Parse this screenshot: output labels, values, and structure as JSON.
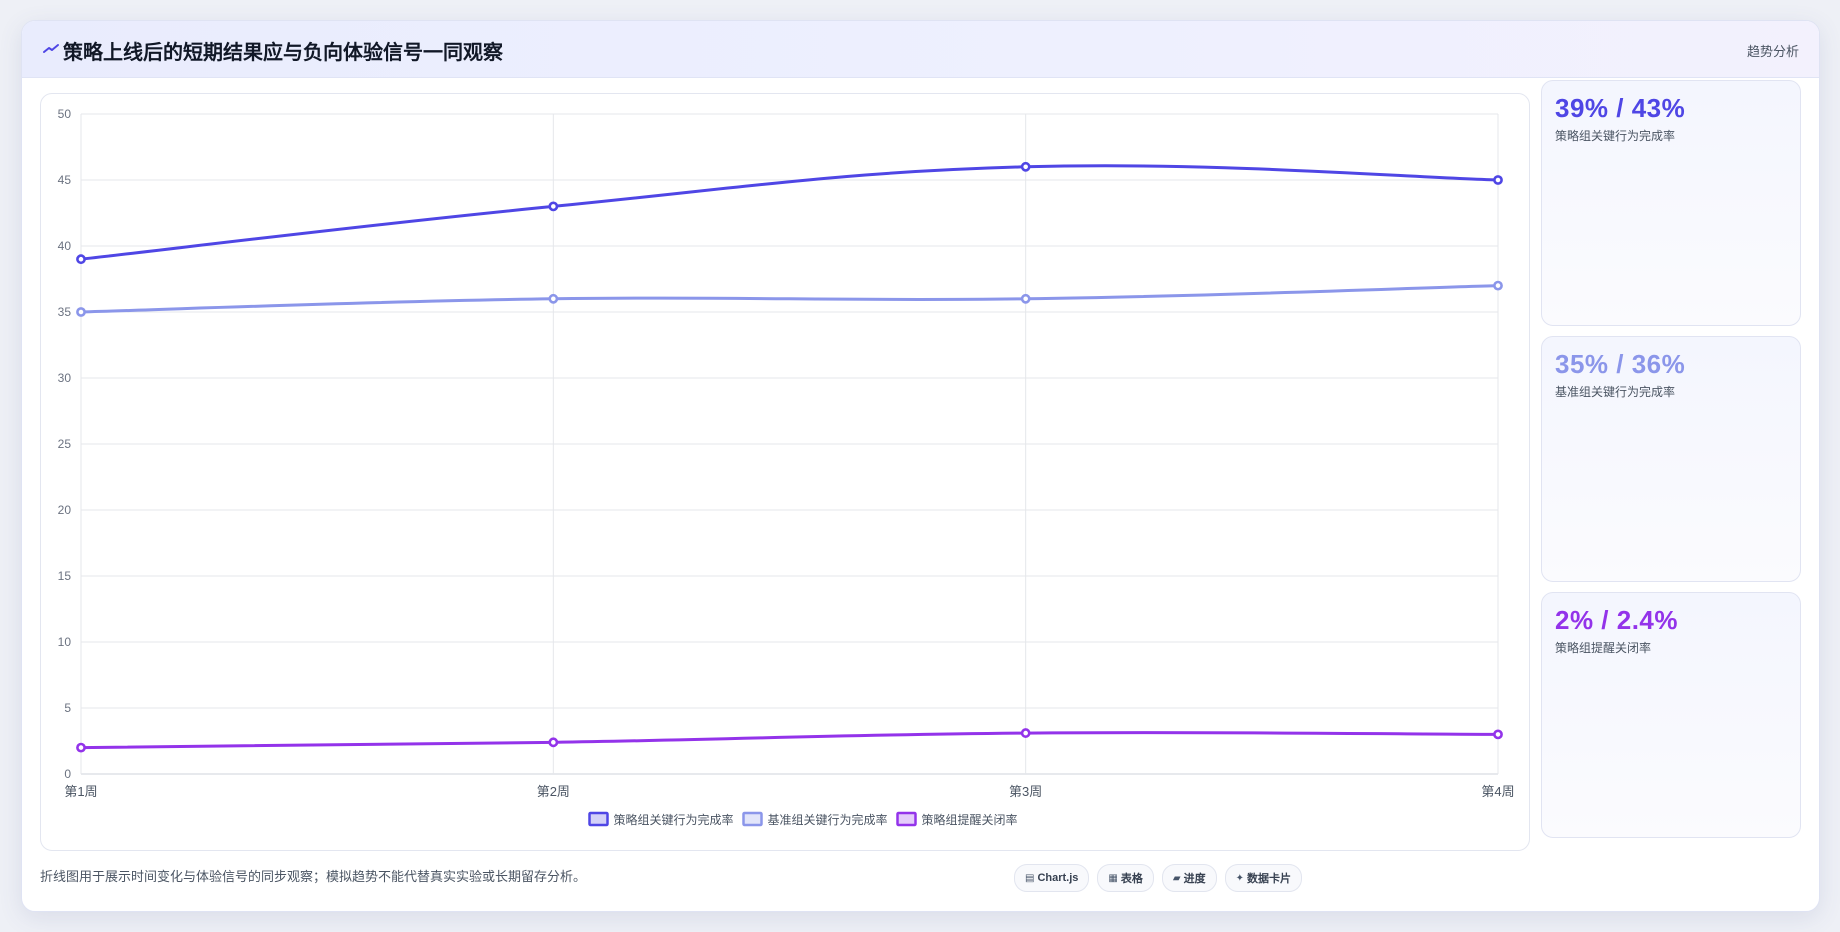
{
  "header": {
    "title": "策略上线后的短期结果应与负向体验信号一同观察",
    "tag": "趋势分析"
  },
  "colors": {
    "series1": "#4f46e5",
    "series2": "#8b96ea",
    "series3": "#9333ea"
  },
  "chart_data": {
    "type": "line",
    "categories": [
      "第1周",
      "第2周",
      "第3周",
      "第4周"
    ],
    "ylim": [
      0,
      50
    ],
    "yticks": [
      0,
      5,
      10,
      15,
      20,
      25,
      30,
      35,
      40,
      45,
      50
    ],
    "grid": true,
    "legend_position": "bottom",
    "series": [
      {
        "name": "策略组关键行为完成率",
        "values": [
          39,
          43,
          46,
          45
        ],
        "color": "#4f46e5"
      },
      {
        "name": "基准组关键行为完成率",
        "values": [
          35,
          36,
          36,
          37
        ],
        "color": "#8b96ea"
      },
      {
        "name": "策略组提醒关闭率",
        "values": [
          2,
          2.4,
          3.1,
          3
        ],
        "color": "#9333ea"
      }
    ]
  },
  "stats": [
    {
      "value": "39% / 43%",
      "label": "策略组关键行为完成率",
      "color": "#4f46e5"
    },
    {
      "value": "35% / 36%",
      "label": "基准组关键行为完成率",
      "color": "#8b96ea"
    },
    {
      "value": "2% / 2.4%",
      "label": "策略组提醒关闭率",
      "color": "#9333ea"
    }
  ],
  "footnote": "折线图用于展示时间变化与体验信号的同步观察；模拟趋势不能代替真实实验或长期留存分析。",
  "pills": [
    {
      "icon": "chart-icon",
      "glyph": "▤",
      "label": "Chart.js"
    },
    {
      "icon": "table-icon",
      "glyph": "▦",
      "label": "表格"
    },
    {
      "icon": "progress-icon",
      "glyph": "▰",
      "label": "进度"
    },
    {
      "icon": "card-icon",
      "glyph": "✦",
      "label": "数据卡片"
    }
  ]
}
